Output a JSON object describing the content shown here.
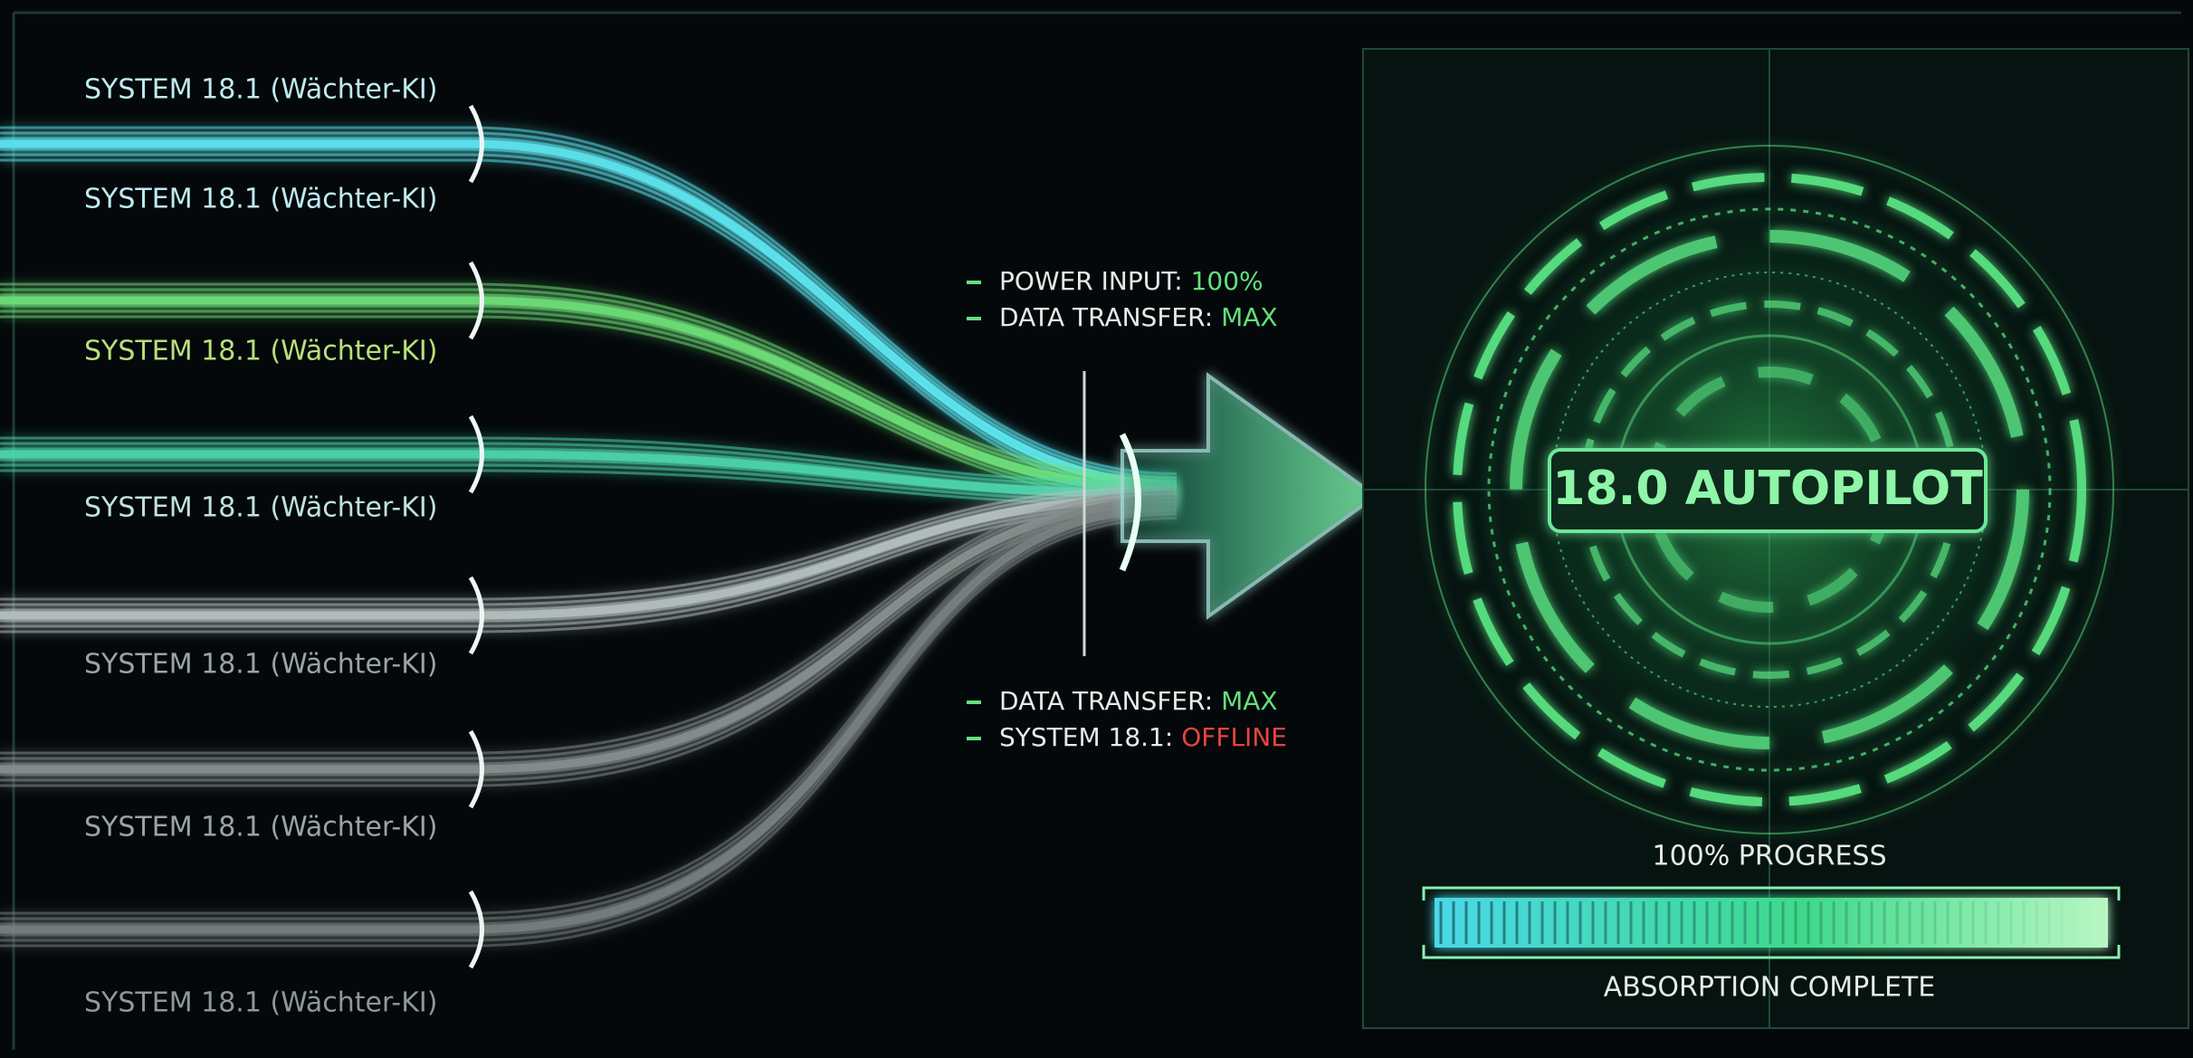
{
  "streams": {
    "labels": [
      "SYSTEM 18.1 (Wächter-KI)",
      "SYSTEM 18.1 (Wächter-KI)",
      "SYSTEM 18.1 (Wächter-KI)",
      "SYSTEM 18.1 (Wächter-KI)",
      "SYSTEM 18.1 (Wächter-KI)",
      "SYSTEM 18.1 (Wächter-KI)",
      "SYSTEM 18.1 (Wächter-KI)"
    ]
  },
  "status": [
    {
      "label": "POWER INPUT:",
      "value": "100%"
    },
    {
      "label": "DATA TRANSFER:",
      "value": "MAX"
    },
    {
      "label": "DATA TRANSFER:",
      "value": "MAX"
    },
    {
      "label": "SYSTEM 18.1:",
      "value": "OFFLINE"
    }
  ],
  "core": {
    "title": "18.0 AUTOPILOT"
  },
  "progress": {
    "label": "100% PROGRESS",
    "status": "ABSORPTION COMPLETE"
  }
}
